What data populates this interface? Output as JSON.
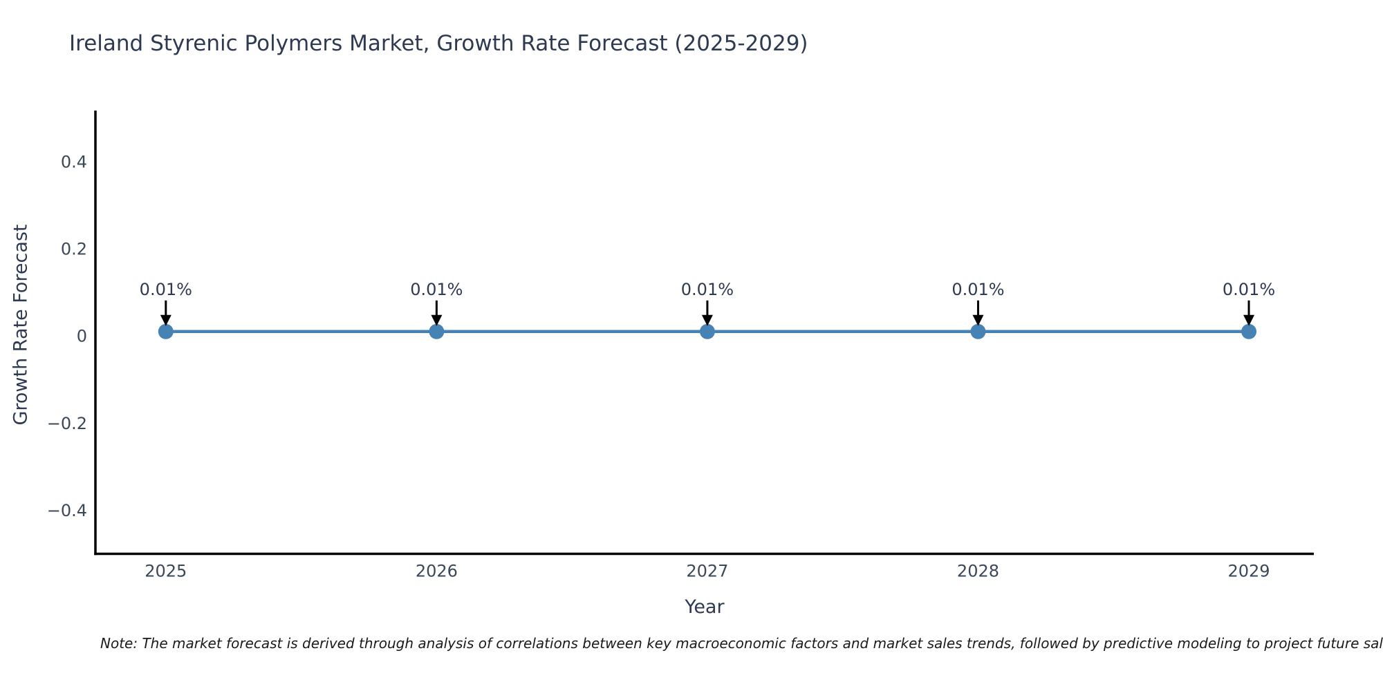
{
  "figure": {
    "note": "Note: The market forecast is derived through analysis of correlations between key macroeconomic factors and market sales trends, followed by predictive modeling to project future sales."
  },
  "chart_data": {
    "type": "line",
    "title": "Ireland Styrenic Polymers Market, Growth Rate Forecast (2025-2029)",
    "xlabel": "Year",
    "ylabel": "Growth Rate Forecast",
    "x": [
      2025,
      2026,
      2027,
      2028,
      2029
    ],
    "series": [
      {
        "name": "Growth Rate Forecast",
        "values": [
          0.01,
          0.01,
          0.01,
          0.01,
          0.01
        ]
      }
    ],
    "point_labels": [
      "0.01%",
      "0.01%",
      "0.01%",
      "0.01%",
      "0.01%"
    ],
    "xtick_labels": [
      "2025",
      "2026",
      "2027",
      "2028",
      "2029"
    ],
    "ytick_values": [
      0.4,
      0.2,
      0,
      -0.2,
      -0.4
    ],
    "ytick_labels": [
      "0.4",
      "0.2",
      "0",
      "−0.2",
      "−0.4"
    ],
    "xlim": [
      2024.74,
      2029.24
    ],
    "ylim": [
      -0.5,
      0.517
    ],
    "grid": false,
    "legend": "none",
    "colors": {
      "line": "#4682b4",
      "marker": "#4682b4",
      "spine": "#000000",
      "arrow": "#000000",
      "title_text": "#2e3a52",
      "tick_text": "#3b4857",
      "note_text": "#1a1a1a"
    }
  }
}
